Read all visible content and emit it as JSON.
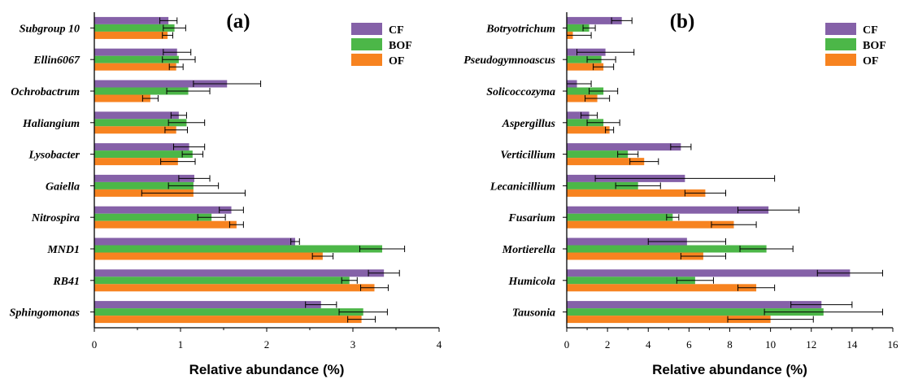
{
  "colors": {
    "CF": "#8561a8",
    "BOF": "#4cb748",
    "OF": "#f78320"
  },
  "chart_data": [
    {
      "type": "bar",
      "orientation": "horizontal",
      "panel_label": "(a)",
      "xlabel": "Relative abundance (%)",
      "ylabel": "",
      "xlim": [
        0,
        4
      ],
      "xticks": [
        0,
        1,
        2,
        3,
        4
      ],
      "legend_position": "top-right",
      "categories": [
        "Subgroup 10",
        "Ellin6067",
        "Ochrobactrum",
        "Haliangium",
        "Lysobacter",
        "Gaiella",
        "Nitrospira",
        "MND1",
        "RB41",
        "Sphingomonas"
      ],
      "series": [
        {
          "name": "CF",
          "values": [
            0.86,
            0.96,
            1.54,
            0.98,
            1.1,
            1.16,
            1.59,
            2.33,
            3.36,
            2.63
          ],
          "errors": [
            0.1,
            0.16,
            0.39,
            0.09,
            0.18,
            0.18,
            0.14,
            0.05,
            0.18,
            0.18
          ]
        },
        {
          "name": "BOF",
          "values": [
            0.93,
            0.98,
            1.09,
            1.07,
            1.14,
            1.15,
            1.36,
            3.34,
            2.96,
            3.12
          ],
          "errors": [
            0.13,
            0.19,
            0.25,
            0.21,
            0.12,
            0.29,
            0.16,
            0.26,
            0.09,
            0.28
          ]
        },
        {
          "name": "OF",
          "values": [
            0.85,
            0.95,
            0.65,
            0.95,
            0.97,
            1.15,
            1.65,
            2.65,
            3.25,
            3.1
          ],
          "errors": [
            0.06,
            0.08,
            0.09,
            0.13,
            0.2,
            0.6,
            0.08,
            0.12,
            0.16,
            0.16
          ]
        }
      ]
    },
    {
      "type": "bar",
      "orientation": "horizontal",
      "panel_label": "(b)",
      "xlabel": "Relative abundance (%)",
      "ylabel": "",
      "xlim": [
        0,
        16
      ],
      "xticks": [
        0,
        2,
        4,
        6,
        8,
        10,
        12,
        14,
        16
      ],
      "legend_position": "top-right",
      "categories": [
        "Botryotrichum",
        "Pseudogymnoascus",
        "Solicoccozyma",
        "Aspergillus",
        "Verticillium",
        "Lecanicillium",
        "Fusarium",
        "Mortierella",
        "Humicola",
        "Tausonia"
      ],
      "series": [
        {
          "name": "CF",
          "values": [
            2.7,
            1.9,
            0.5,
            1.1,
            5.6,
            5.8,
            9.9,
            5.9,
            13.9,
            12.5
          ],
          "errors": [
            0.5,
            1.4,
            0.7,
            0.4,
            0.5,
            4.4,
            1.5,
            1.9,
            1.6,
            1.5
          ]
        },
        {
          "name": "BOF",
          "values": [
            1.1,
            1.7,
            1.8,
            1.8,
            3.0,
            3.5,
            5.2,
            9.8,
            6.3,
            12.6
          ],
          "errors": [
            0.3,
            0.7,
            0.7,
            0.8,
            0.5,
            1.1,
            0.3,
            1.3,
            0.9,
            2.9
          ]
        },
        {
          "name": "OF",
          "values": [
            0.3,
            1.8,
            1.5,
            2.1,
            3.8,
            6.8,
            8.2,
            6.7,
            9.3,
            10.0
          ],
          "errors": [
            0.9,
            0.5,
            0.6,
            0.2,
            0.7,
            1.0,
            1.1,
            1.1,
            0.9,
            2.1
          ]
        }
      ]
    }
  ]
}
